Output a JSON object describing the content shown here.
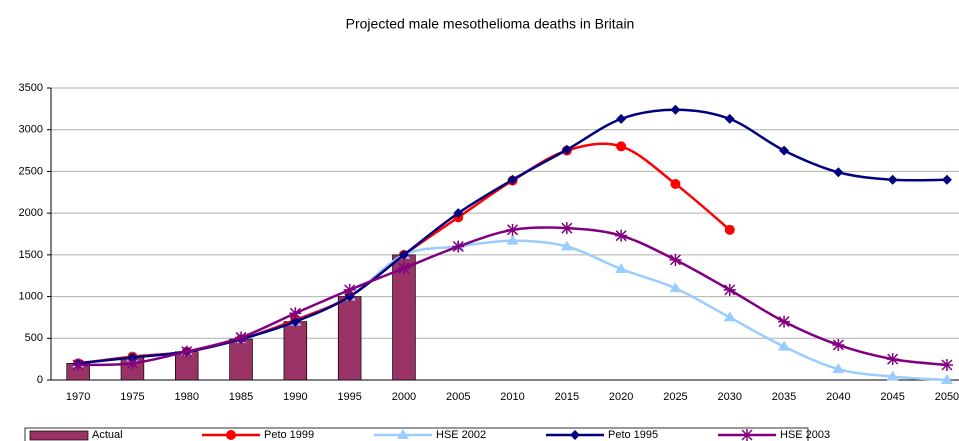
{
  "chart_data": {
    "type": "bar_line",
    "title": "Projected male mesothelioma deaths in Britain",
    "categories": [
      "1970",
      "1975",
      "1980",
      "1985",
      "1990",
      "1995",
      "2000",
      "2005",
      "2010",
      "2015",
      "2020",
      "2025",
      "2030",
      "2035",
      "2040",
      "2045",
      "2050"
    ],
    "ylim": [
      0,
      3500
    ],
    "yticks": [
      0,
      500,
      1000,
      1500,
      2000,
      2500,
      3000,
      3500
    ],
    "grid": true,
    "legend": "bottom",
    "series": [
      {
        "name": "Actual",
        "type": "bar",
        "color": "#993366",
        "values": [
          200,
          270,
          340,
          490,
          700,
          1000,
          1500,
          null,
          null,
          null,
          null,
          null,
          null,
          null,
          null,
          null,
          null
        ]
      },
      {
        "name": "Peto 1999",
        "type": "line",
        "marker": "circle",
        "color": "#ff0000",
        "values": [
          200,
          280,
          340,
          490,
          720,
          1000,
          1500,
          1950,
          2390,
          2750,
          2800,
          2350,
          1800,
          null,
          null,
          null,
          null
        ]
      },
      {
        "name": "HSE 2002",
        "type": "line",
        "marker": "triangle",
        "color": "#99ccff",
        "values": [
          200,
          270,
          340,
          490,
          700,
          1000,
          1500,
          1600,
          1670,
          1600,
          1330,
          1100,
          750,
          400,
          130,
          40,
          0
        ]
      },
      {
        "name": "Peto 1995",
        "type": "line",
        "marker": "diamond",
        "color": "#000080",
        "values": [
          200,
          270,
          340,
          490,
          700,
          1000,
          1500,
          2000,
          2400,
          2760,
          3130,
          3240,
          3130,
          2750,
          2490,
          2400,
          2400
        ]
      },
      {
        "name": "HSE 2003",
        "type": "line",
        "marker": "star",
        "color": "#800080",
        "values": [
          180,
          200,
          340,
          510,
          800,
          1080,
          1340,
          1600,
          1800,
          1820,
          1730,
          1440,
          1080,
          700,
          420,
          250,
          180
        ]
      }
    ]
  }
}
